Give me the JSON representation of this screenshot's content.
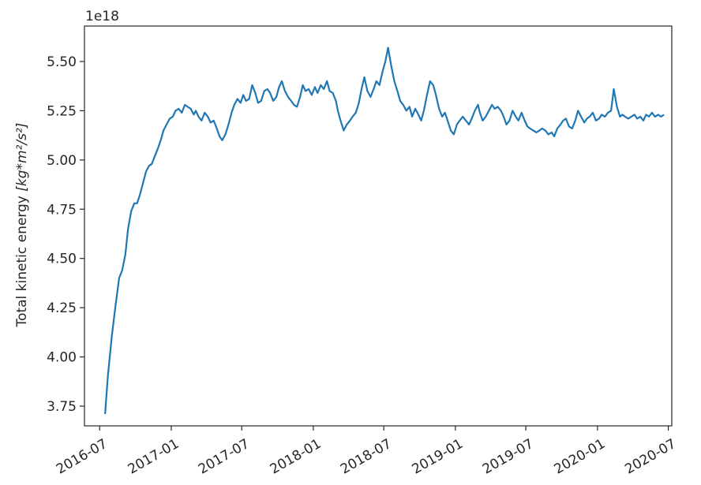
{
  "chart_data": {
    "type": "line",
    "ylabel_text": "Total kinetic energy ",
    "ylabel_unit": "[kg*m²/s²]",
    "y_offset_label": "1e18",
    "ylim": [
      3.65,
      5.68
    ],
    "xlim": [
      "2016-05-23",
      "2020-07-10"
    ],
    "xticks": [
      {
        "date": "2016-07-01",
        "label": "2016-07"
      },
      {
        "date": "2017-01-01",
        "label": "2017-01"
      },
      {
        "date": "2017-07-01",
        "label": "2017-07"
      },
      {
        "date": "2018-01-01",
        "label": "2018-01"
      },
      {
        "date": "2018-07-01",
        "label": "2018-07"
      },
      {
        "date": "2019-01-01",
        "label": "2019-01"
      },
      {
        "date": "2019-07-01",
        "label": "2019-07"
      },
      {
        "date": "2020-01-01",
        "label": "2020-01"
      },
      {
        "date": "2020-07-01",
        "label": "2020-07"
      }
    ],
    "yticks": [
      {
        "value": 3.75,
        "label": "3.75"
      },
      {
        "value": 4.0,
        "label": "4.00"
      },
      {
        "value": 4.25,
        "label": "4.25"
      },
      {
        "value": 4.5,
        "label": "4.50"
      },
      {
        "value": 4.75,
        "label": "4.75"
      },
      {
        "value": 5.0,
        "label": "5.00"
      },
      {
        "value": 5.25,
        "label": "5.25"
      },
      {
        "value": 5.5,
        "label": "5.50"
      }
    ],
    "grid": false,
    "series": [
      {
        "color": "#1f77b4",
        "x": [
          "2016-07-15",
          "2016-07-22",
          "2016-08-01",
          "2016-08-10",
          "2016-08-20",
          "2016-08-28",
          "2016-09-05",
          "2016-09-12",
          "2016-09-20",
          "2016-09-28",
          "2016-10-05",
          "2016-10-12",
          "2016-10-20",
          "2016-10-28",
          "2016-11-05",
          "2016-11-12",
          "2016-11-20",
          "2016-11-28",
          "2016-12-05",
          "2016-12-12",
          "2016-12-20",
          "2016-12-28",
          "2017-01-05",
          "2017-01-12",
          "2017-01-20",
          "2017-01-28",
          "2017-02-05",
          "2017-02-12",
          "2017-02-20",
          "2017-02-28",
          "2017-03-05",
          "2017-03-12",
          "2017-03-20",
          "2017-03-28",
          "2017-04-05",
          "2017-04-12",
          "2017-04-20",
          "2017-04-28",
          "2017-05-05",
          "2017-05-12",
          "2017-05-20",
          "2017-05-28",
          "2017-06-05",
          "2017-06-12",
          "2017-06-20",
          "2017-06-28",
          "2017-07-05",
          "2017-07-12",
          "2017-07-20",
          "2017-07-28",
          "2017-08-05",
          "2017-08-12",
          "2017-08-20",
          "2017-08-28",
          "2017-09-05",
          "2017-09-12",
          "2017-09-20",
          "2017-09-28",
          "2017-10-05",
          "2017-10-12",
          "2017-10-20",
          "2017-10-28",
          "2017-11-05",
          "2017-11-12",
          "2017-11-20",
          "2017-11-28",
          "2017-12-05",
          "2017-12-12",
          "2017-12-20",
          "2017-12-28",
          "2018-01-05",
          "2018-01-12",
          "2018-01-20",
          "2018-01-28",
          "2018-02-05",
          "2018-02-12",
          "2018-02-20",
          "2018-02-28",
          "2018-03-05",
          "2018-03-12",
          "2018-03-20",
          "2018-03-28",
          "2018-04-05",
          "2018-04-12",
          "2018-04-20",
          "2018-04-28",
          "2018-05-05",
          "2018-05-12",
          "2018-05-20",
          "2018-05-28",
          "2018-06-05",
          "2018-06-12",
          "2018-06-20",
          "2018-06-28",
          "2018-07-05",
          "2018-07-12",
          "2018-07-20",
          "2018-07-28",
          "2018-08-05",
          "2018-08-12",
          "2018-08-20",
          "2018-08-28",
          "2018-09-05",
          "2018-09-12",
          "2018-09-20",
          "2018-09-28",
          "2018-10-05",
          "2018-10-12",
          "2018-10-20",
          "2018-10-28",
          "2018-11-05",
          "2018-11-12",
          "2018-11-20",
          "2018-11-28",
          "2018-12-05",
          "2018-12-12",
          "2018-12-20",
          "2018-12-28",
          "2019-01-05",
          "2019-01-12",
          "2019-01-20",
          "2019-01-28",
          "2019-02-05",
          "2019-02-12",
          "2019-02-20",
          "2019-02-28",
          "2019-03-05",
          "2019-03-12",
          "2019-03-20",
          "2019-03-28",
          "2019-04-05",
          "2019-04-12",
          "2019-04-20",
          "2019-04-28",
          "2019-05-05",
          "2019-05-12",
          "2019-05-20",
          "2019-05-28",
          "2019-06-05",
          "2019-06-12",
          "2019-06-20",
          "2019-06-28",
          "2019-07-05",
          "2019-07-12",
          "2019-07-20",
          "2019-07-28",
          "2019-08-05",
          "2019-08-12",
          "2019-08-20",
          "2019-08-28",
          "2019-09-05",
          "2019-09-12",
          "2019-09-20",
          "2019-09-28",
          "2019-10-05",
          "2019-10-12",
          "2019-10-20",
          "2019-10-28",
          "2019-11-05",
          "2019-11-12",
          "2019-11-20",
          "2019-11-28",
          "2019-12-05",
          "2019-12-12",
          "2019-12-20",
          "2019-12-28",
          "2020-01-05",
          "2020-01-12",
          "2020-01-20",
          "2020-01-28",
          "2020-02-05",
          "2020-02-12",
          "2020-02-20",
          "2020-02-28",
          "2020-03-05",
          "2020-03-12",
          "2020-03-20",
          "2020-03-28",
          "2020-04-05",
          "2020-04-12",
          "2020-04-20",
          "2020-04-28",
          "2020-05-05",
          "2020-05-12",
          "2020-05-20",
          "2020-05-28",
          "2020-06-05",
          "2020-06-12",
          "2020-06-20"
        ],
        "y": [
          3.71,
          3.9,
          4.1,
          4.25,
          4.4,
          4.44,
          4.52,
          4.65,
          4.74,
          4.78,
          4.78,
          4.82,
          4.88,
          4.94,
          4.97,
          4.98,
          5.02,
          5.06,
          5.1,
          5.15,
          5.18,
          5.21,
          5.22,
          5.25,
          5.26,
          5.24,
          5.28,
          5.27,
          5.26,
          5.23,
          5.25,
          5.22,
          5.2,
          5.24,
          5.22,
          5.19,
          5.2,
          5.16,
          5.12,
          5.1,
          5.13,
          5.18,
          5.24,
          5.28,
          5.31,
          5.29,
          5.33,
          5.3,
          5.31,
          5.38,
          5.34,
          5.29,
          5.3,
          5.35,
          5.36,
          5.34,
          5.3,
          5.32,
          5.37,
          5.4,
          5.35,
          5.32,
          5.3,
          5.28,
          5.27,
          5.32,
          5.38,
          5.35,
          5.36,
          5.33,
          5.37,
          5.34,
          5.38,
          5.36,
          5.4,
          5.35,
          5.34,
          5.3,
          5.25,
          5.2,
          5.15,
          5.18,
          5.2,
          5.22,
          5.24,
          5.29,
          5.36,
          5.42,
          5.35,
          5.32,
          5.36,
          5.4,
          5.38,
          5.45,
          5.5,
          5.57,
          5.48,
          5.4,
          5.35,
          5.3,
          5.28,
          5.25,
          5.27,
          5.22,
          5.26,
          5.23,
          5.2,
          5.25,
          5.33,
          5.4,
          5.38,
          5.33,
          5.26,
          5.22,
          5.24,
          5.2,
          5.15,
          5.13,
          5.18,
          5.2,
          5.22,
          5.2,
          5.18,
          5.21,
          5.25,
          5.28,
          5.24,
          5.2,
          5.22,
          5.25,
          5.28,
          5.26,
          5.27,
          5.25,
          5.22,
          5.18,
          5.2,
          5.25,
          5.22,
          5.2,
          5.24,
          5.2,
          5.17,
          5.16,
          5.15,
          5.14,
          5.15,
          5.16,
          5.15,
          5.13,
          5.14,
          5.12,
          5.16,
          5.18,
          5.2,
          5.21,
          5.17,
          5.16,
          5.2,
          5.25,
          5.22,
          5.19,
          5.21,
          5.22,
          5.24,
          5.2,
          5.21,
          5.23,
          5.22,
          5.24,
          5.25,
          5.36,
          5.27,
          5.22,
          5.23,
          5.22,
          5.21,
          5.22,
          5.23,
          5.21,
          5.22,
          5.2,
          5.23,
          5.22,
          5.24,
          5.22,
          5.23,
          5.22,
          5.23
        ]
      }
    ]
  }
}
